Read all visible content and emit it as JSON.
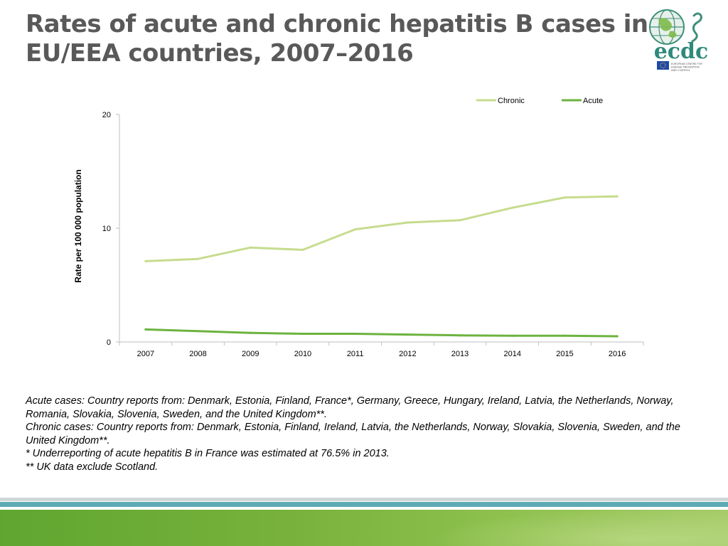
{
  "header": {
    "title_line1": "Rates of acute and chronic hepatitis B cases in",
    "title_line2": "EU/EEA countries, 2007–2016"
  },
  "logo": {
    "text": "ecdc",
    "subtext": "EUROPEAN CENTRE FOR DISEASE PREVENTION AND CONTROL"
  },
  "chart_data": {
    "type": "line",
    "title": "",
    "xlabel": "",
    "ylabel": "Rate per 100 000 population",
    "categories": [
      "2007",
      "2008",
      "2009",
      "2010",
      "2011",
      "2012",
      "2013",
      "2014",
      "2015",
      "2016"
    ],
    "ylim": [
      0,
      20
    ],
    "yticks": [
      0,
      10,
      20
    ],
    "grid": false,
    "legend": "top-right",
    "series": [
      {
        "name": "Chronic",
        "color": "#c6dc8e",
        "values": [
          7.1,
          7.3,
          8.3,
          8.1,
          9.9,
          10.5,
          10.7,
          11.8,
          12.7,
          12.8
        ]
      },
      {
        "name": "Acute",
        "color": "#6cb33f",
        "values": [
          1.1,
          0.95,
          0.8,
          0.72,
          0.72,
          0.65,
          0.58,
          0.55,
          0.55,
          0.5
        ]
      }
    ]
  },
  "notes": {
    "line1": "Acute cases: Country reports from: Denmark, Estonia, Finland, France*, Germany, Greece, Hungary, Ireland, Latvia, the Netherlands, Norway, Romania, Slovakia, Slovenia, Sweden, and the United Kingdom**.",
    "line2": "Chronic cases: Country reports from:  Denmark, Estonia, Finland, Ireland, Latvia, the Netherlands, Norway, Slovakia, Slovenia, Sweden, and the United Kingdom**.",
    "line3": "* Underreporting of acute hepatitis B in France was estimated at 76.5% in 2013.",
    "line4": "** UK data exclude Scotland."
  }
}
